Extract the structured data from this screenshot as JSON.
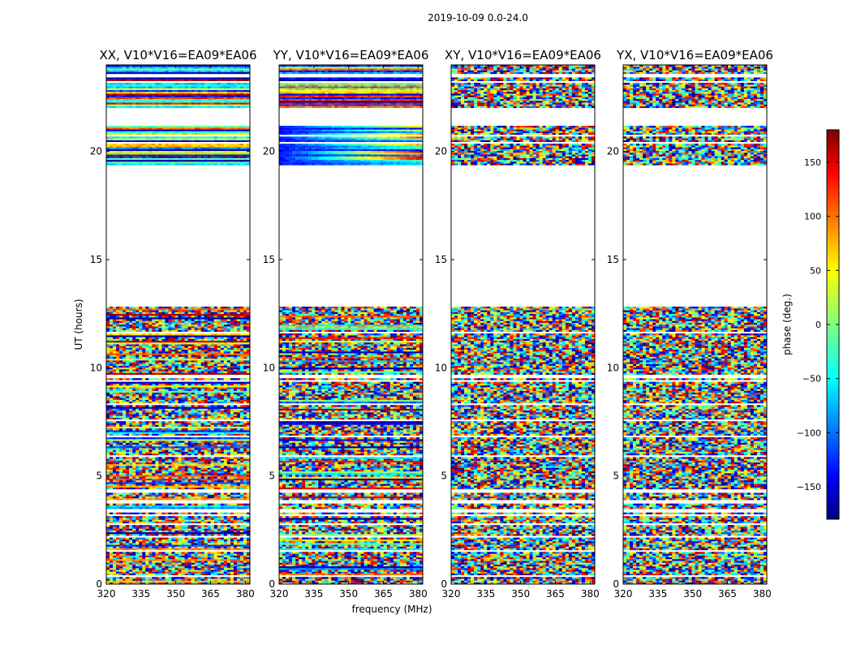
{
  "chart_data": {
    "type": "heatmap",
    "title": "2019-10-09 0.0-24.0",
    "xlabel": "frequency (MHz)",
    "ylabel": "UT (hours)",
    "xlim": [
      320,
      382
    ],
    "ylim": [
      0,
      24
    ],
    "xticks": [
      "320",
      "335",
      "350",
      "365",
      "380"
    ],
    "xtick_values": [
      320,
      335,
      350,
      365,
      380
    ],
    "yticks": [
      "0",
      "5",
      "10",
      "15",
      "20"
    ],
    "ytick_values": [
      0,
      5,
      10,
      15,
      20
    ],
    "time_ranges_with_data": [
      [
        0,
        12.8
      ],
      [
        19.4,
        21.2
      ],
      [
        22.0,
        24.0
      ]
    ],
    "flagged_rows_hours": [
      0.4,
      1.5,
      2.2,
      2.8,
      3.2,
      3.4,
      3.8,
      4.3,
      5.9,
      6.8,
      7.6,
      8.3,
      9.4,
      9.6,
      11.6,
      20.4,
      20.7,
      23.2,
      23.5
    ],
    "panels": [
      {
        "name": "XX",
        "title": "XX, V10*V16=EA09*EA06",
        "style": "coherent"
      },
      {
        "name": "YY",
        "title": "YY, V10*V16=EA09*EA06",
        "style": "gradient"
      },
      {
        "name": "XY",
        "title": "XY, V10*V16=EA09*EA06",
        "style": "noise"
      },
      {
        "name": "YX",
        "title": "YX, V10*V16=EA09*EA06",
        "style": "noise"
      }
    ],
    "colorbar": {
      "label": "phase (deg.)",
      "range": [
        -180,
        180
      ],
      "ticks": [
        "150",
        "100",
        "50",
        "0",
        "−50",
        "−100",
        "−150"
      ],
      "tick_values": [
        150,
        100,
        50,
        0,
        -50,
        -100,
        -150
      ],
      "colormap": "jet"
    }
  }
}
